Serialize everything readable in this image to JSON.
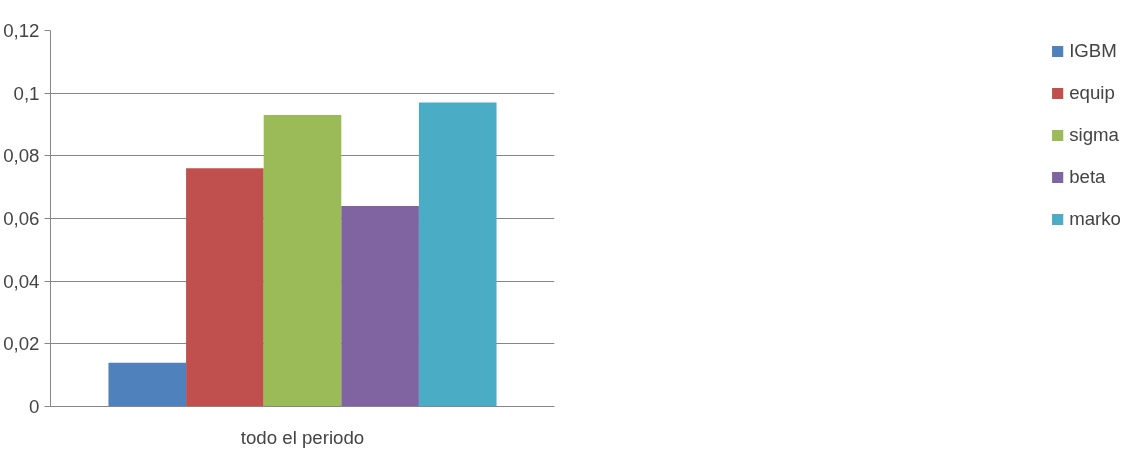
{
  "chart_data": {
    "type": "bar",
    "categories": [
      "todo el periodo"
    ],
    "series": [
      {
        "name": "IGBM",
        "color": "#4f81bd",
        "values": [
          0.014
        ]
      },
      {
        "name": "equip",
        "color": "#c0504d",
        "values": [
          0.076
        ]
      },
      {
        "name": "sigma",
        "color": "#9bbb59",
        "values": [
          0.093
        ]
      },
      {
        "name": "beta",
        "color": "#8064a2",
        "values": [
          0.064
        ]
      },
      {
        "name": "marko",
        "color": "#4bacc6",
        "values": [
          0.097
        ]
      }
    ],
    "ylim": [
      0,
      0.12
    ],
    "yticks": [
      0,
      {
        "value": 0.02,
        "label": "0,02"
      },
      {
        "value": 0.04,
        "label": "0,04"
      },
      {
        "value": 0.06,
        "label": "0,06"
      },
      {
        "value": 0.08,
        "label": "0,08"
      },
      {
        "value": 0.1,
        "label": "0,1"
      },
      {
        "value": 0.12,
        "label": "0,12"
      }
    ],
    "grid": "y",
    "legend": "right"
  }
}
